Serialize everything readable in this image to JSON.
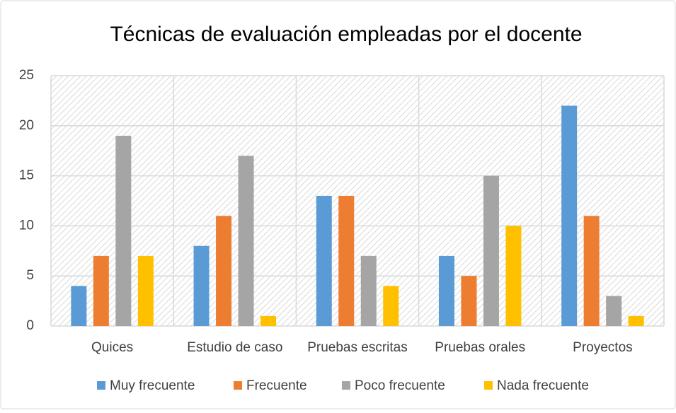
{
  "chart_data": {
    "type": "bar",
    "title": "Técnicas de evaluación empleadas por el docente",
    "categories": [
      "Quices",
      "Estudio de caso",
      "Pruebas escritas",
      "Pruebas orales",
      "Proyectos"
    ],
    "series": [
      {
        "name": "Muy frecuente",
        "color": "#5b9bd5",
        "values": [
          4,
          8,
          13,
          7,
          22
        ]
      },
      {
        "name": "Frecuente",
        "color": "#ed7d31",
        "values": [
          7,
          11,
          13,
          5,
          11
        ]
      },
      {
        "name": "Poco frecuente",
        "color": "#a5a5a5",
        "values": [
          19,
          17,
          7,
          15,
          3
        ]
      },
      {
        "name": "Nada frecuente",
        "color": "#ffc000",
        "values": [
          7,
          1,
          4,
          10,
          1
        ]
      }
    ],
    "ylim": [
      0,
      25
    ],
    "yticks": [
      0,
      5,
      10,
      15,
      20,
      25
    ],
    "grid": true,
    "legend": "bottom"
  }
}
